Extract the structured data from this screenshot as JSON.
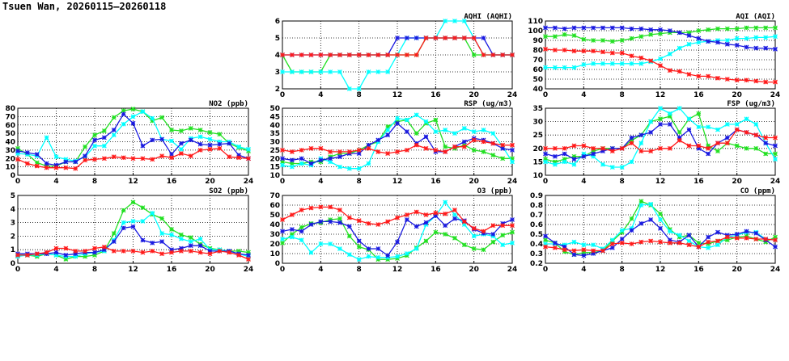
{
  "title": "Tsuen Wan, 20260115—20260118",
  "chart_data": [
    {
      "type": "line",
      "title": "AQHI (AQHI)",
      "xlim": [
        0,
        24
      ],
      "ylim": [
        2,
        6
      ],
      "xticks": [
        0,
        4,
        8,
        12,
        16,
        20,
        24
      ],
      "yticks": [
        2,
        3,
        4,
        5,
        6
      ],
      "grid": true,
      "series": [
        {
          "color": "#22e022",
          "values": [
            4,
            3,
            3,
            3,
            3,
            4,
            4,
            4,
            4,
            4,
            4,
            4,
            4,
            4,
            4,
            5,
            5,
            5,
            5,
            5,
            4,
            4,
            4,
            4,
            4
          ]
        },
        {
          "color": "#00ffff",
          "values": [
            3,
            3,
            3,
            3,
            3,
            3,
            3,
            2,
            2,
            3,
            3,
            3,
            4,
            5,
            5,
            5,
            5,
            6,
            6,
            6,
            5,
            4,
            4,
            4,
            4
          ]
        },
        {
          "color": "#1a1ae0",
          "values": [
            4,
            4,
            4,
            4,
            4,
            4,
            4,
            4,
            4,
            4,
            4,
            4,
            5,
            5,
            5,
            5,
            5,
            5,
            5,
            5,
            5,
            5,
            4,
            4,
            4
          ]
        },
        {
          "color": "#ff1a1a",
          "values": [
            4,
            4,
            4,
            4,
            4,
            4,
            4,
            4,
            4,
            4,
            4,
            4,
            4,
            4,
            4,
            5,
            5,
            5,
            5,
            5,
            5,
            4,
            4,
            4,
            4
          ]
        }
      ]
    },
    {
      "type": "line",
      "title": "AQI (AQI)",
      "xlim": [
        0,
        24
      ],
      "ylim": [
        40,
        110
      ],
      "xticks": [
        0,
        4,
        8,
        12,
        16,
        20,
        24
      ],
      "yticks": [
        40,
        50,
        60,
        70,
        80,
        90,
        100,
        110
      ],
      "grid": true,
      "series": [
        {
          "color": "#22e022",
          "values": [
            94,
            94,
            96,
            95,
            91,
            90,
            90,
            89,
            90,
            92,
            94,
            96,
            97,
            98,
            98,
            98,
            100,
            101,
            102,
            102,
            102,
            103,
            103,
            103,
            103
          ]
        },
        {
          "color": "#00ffff",
          "values": [
            62,
            62,
            62,
            62,
            65,
            66,
            66,
            66,
            66,
            66,
            66,
            68,
            71,
            76,
            82,
            86,
            88,
            89,
            90,
            90,
            92,
            92,
            93,
            93,
            94
          ]
        },
        {
          "color": "#1a1ae0",
          "values": [
            103,
            103,
            102,
            103,
            103,
            103,
            103,
            103,
            103,
            102,
            102,
            101,
            101,
            100,
            98,
            95,
            92,
            89,
            88,
            86,
            85,
            83,
            82,
            82,
            81
          ]
        },
        {
          "color": "#ff1a1a",
          "values": [
            81,
            80,
            80,
            79,
            79,
            79,
            78,
            77,
            77,
            74,
            72,
            69,
            64,
            59,
            58,
            55,
            53,
            53,
            51,
            50,
            49,
            49,
            48,
            47,
            47
          ]
        }
      ]
    },
    {
      "type": "line",
      "title": "NO2 (ppb)",
      "xlim": [
        0,
        24
      ],
      "ylim": [
        0,
        80
      ],
      "xticks": [
        0,
        4,
        8,
        12,
        16,
        20,
        24
      ],
      "yticks": [
        0,
        10,
        20,
        30,
        40,
        50,
        60,
        70,
        80
      ],
      "grid": true,
      "series": [
        {
          "color": "#22e022",
          "values": [
            32,
            25,
            15,
            11,
            11,
            16,
            16,
            34,
            48,
            53,
            69,
            77,
            79,
            76,
            65,
            69,
            54,
            53,
            56,
            54,
            51,
            49,
            38,
            33,
            29
          ]
        },
        {
          "color": "#00ffff",
          "values": [
            26,
            25,
            23,
            45,
            22,
            19,
            17,
            22,
            35,
            35,
            48,
            61,
            70,
            76,
            68,
            43,
            41,
            31,
            44,
            46,
            43,
            40,
            40,
            34,
            31
          ]
        },
        {
          "color": "#1a1ae0",
          "values": [
            29,
            27,
            25,
            14,
            12,
            16,
            16,
            23,
            42,
            45,
            54,
            73,
            62,
            35,
            42,
            43,
            25,
            38,
            42,
            37,
            36,
            37,
            38,
            24,
            20
          ]
        },
        {
          "color": "#ff1a1a",
          "values": [
            19,
            14,
            11,
            9,
            9,
            9,
            8,
            18,
            19,
            20,
            22,
            21,
            20,
            20,
            19,
            23,
            21,
            26,
            23,
            30,
            31,
            32,
            22,
            21,
            20
          ]
        }
      ]
    },
    {
      "type": "line",
      "title": "RSP (ug/m3)",
      "xlim": [
        0,
        24
      ],
      "ylim": [
        10,
        50
      ],
      "xticks": [
        0,
        4,
        8,
        12,
        16,
        20,
        24
      ],
      "yticks": [
        10,
        15,
        20,
        25,
        30,
        35,
        40,
        45,
        50
      ],
      "grid": true,
      "series": [
        {
          "color": "#22e022",
          "values": [
            18,
            17,
            17,
            18,
            18,
            21,
            23,
            23,
            25,
            28,
            30,
            39,
            42,
            43,
            35,
            41,
            43,
            27,
            26,
            28,
            25,
            24,
            22,
            20,
            20
          ]
        },
        {
          "color": "#00ffff",
          "values": [
            16,
            15,
            17,
            16,
            20,
            18,
            15,
            14,
            14,
            17,
            30,
            37,
            44,
            43,
            46,
            42,
            36,
            37,
            35,
            38,
            36,
            37,
            35,
            27,
            18
          ]
        },
        {
          "color": "#1a1ae0",
          "values": [
            20,
            19,
            20,
            17,
            19,
            20,
            21,
            23,
            23,
            28,
            31,
            34,
            41,
            36,
            29,
            33,
            24,
            24,
            27,
            30,
            32,
            31,
            29,
            26,
            25
          ]
        },
        {
          "color": "#ff1a1a",
          "values": [
            25,
            24,
            25,
            26,
            26,
            24,
            24,
            24,
            25,
            26,
            24,
            23,
            24,
            25,
            28,
            26,
            25,
            24,
            27,
            27,
            31,
            30,
            29,
            28,
            28
          ]
        }
      ]
    },
    {
      "type": "line",
      "title": "FSP (ug/m3)",
      "xlim": [
        0,
        24
      ],
      "ylim": [
        10,
        35
      ],
      "xticks": [
        0,
        4,
        8,
        12,
        16,
        20,
        24
      ],
      "yticks": [
        10,
        15,
        20,
        25,
        30,
        35
      ],
      "grid": true,
      "series": [
        {
          "color": "#22e022",
          "values": [
            16,
            15,
            16,
            17,
            17,
            19,
            20,
            20,
            20,
            23,
            25,
            30,
            31,
            32,
            26,
            31,
            33,
            21,
            19,
            22,
            21,
            20,
            20,
            18,
            18
          ]
        },
        {
          "color": "#00ffff",
          "values": [
            15,
            14,
            15,
            14,
            18,
            17,
            14,
            13,
            13,
            15,
            22,
            30,
            35,
            33,
            35,
            31,
            28,
            28,
            27,
            29,
            29,
            31,
            29,
            22,
            16
          ]
        },
        {
          "color": "#1a1ae0",
          "values": [
            18,
            17,
            18,
            16,
            17,
            18,
            19,
            20,
            20,
            24,
            25,
            26,
            29,
            29,
            24,
            27,
            20,
            18,
            22,
            24,
            27,
            26,
            25,
            22,
            21
          ]
        },
        {
          "color": "#ff1a1a",
          "values": [
            20,
            20,
            20,
            21,
            21,
            20,
            20,
            19,
            20,
            22,
            19,
            19,
            20,
            20,
            23,
            21,
            21,
            20,
            22,
            22,
            27,
            26,
            25,
            24,
            24
          ]
        }
      ]
    },
    {
      "type": "line",
      "title": "SO2 (ppb)",
      "xlim": [
        0,
        24
      ],
      "ylim": [
        0,
        5
      ],
      "xticks": [
        0,
        4,
        8,
        12,
        16,
        20,
        24
      ],
      "yticks": [
        0,
        1,
        2,
        3,
        4,
        5
      ],
      "grid": true,
      "series": [
        {
          "color": "#22e022",
          "values": [
            0.6,
            0.6,
            0.5,
            0.7,
            0.6,
            0.3,
            0.5,
            0.5,
            0.6,
            0.9,
            2.2,
            3.9,
            4.5,
            4.1,
            3.6,
            3.3,
            2.5,
            2.1,
            1.9,
            1.4,
            1.1,
            1.0,
            0.9,
            0.9,
            0.8
          ]
        },
        {
          "color": "#00ffff",
          "values": [
            0.5,
            0.6,
            0.6,
            0.7,
            0.6,
            0.5,
            0.5,
            0.7,
            0.8,
            0.9,
            1.7,
            3.0,
            3.1,
            3.1,
            3.7,
            2.2,
            2.1,
            1.8,
            1.6,
            1.8,
            1.0,
            1.0,
            0.9,
            0.7,
            0.5
          ]
        },
        {
          "color": "#1a1ae0",
          "values": [
            0.7,
            0.7,
            0.7,
            0.7,
            0.8,
            0.6,
            0.7,
            0.8,
            0.8,
            1.0,
            1.6,
            2.6,
            2.7,
            1.7,
            1.5,
            1.6,
            1.0,
            1.1,
            1.3,
            1.3,
            0.9,
            0.9,
            0.9,
            0.7,
            0.6
          ]
        },
        {
          "color": "#ff1a1a",
          "values": [
            0.6,
            0.6,
            0.7,
            0.8,
            1.1,
            1.1,
            0.9,
            0.9,
            1.1,
            1.2,
            0.9,
            0.9,
            0.9,
            0.8,
            0.9,
            0.7,
            0.8,
            0.9,
            0.9,
            0.8,
            0.7,
            0.9,
            0.8,
            0.6,
            0.3
          ]
        }
      ]
    },
    {
      "type": "line",
      "title": "O3 (ppb)",
      "xlim": [
        0,
        24
      ],
      "ylim": [
        0,
        70
      ],
      "xticks": [
        0,
        4,
        8,
        12,
        16,
        20,
        24
      ],
      "yticks": [
        0,
        10,
        20,
        30,
        40,
        50,
        60,
        70
      ],
      "grid": true,
      "series": [
        {
          "color": "#22e022",
          "values": [
            21,
            30,
            37,
            41,
            42,
            45,
            46,
            28,
            17,
            14,
            4,
            4,
            5,
            8,
            16,
            23,
            32,
            30,
            26,
            19,
            15,
            14,
            22,
            29,
            32
          ]
        },
        {
          "color": "#00ffff",
          "values": [
            25,
            27,
            24,
            11,
            20,
            20,
            15,
            9,
            4,
            7,
            6,
            6,
            7,
            10,
            15,
            40,
            49,
            63,
            50,
            40,
            28,
            30,
            28,
            19,
            21
          ]
        },
        {
          "color": "#1a1ae0",
          "values": [
            33,
            35,
            33,
            40,
            43,
            43,
            42,
            38,
            23,
            15,
            15,
            8,
            22,
            45,
            38,
            42,
            49,
            39,
            46,
            44,
            35,
            31,
            30,
            41,
            45
          ]
        },
        {
          "color": "#ff1a1a",
          "values": [
            45,
            50,
            55,
            57,
            58,
            58,
            55,
            47,
            44,
            41,
            40,
            43,
            47,
            50,
            53,
            50,
            52,
            51,
            55,
            43,
            36,
            33,
            39,
            39,
            39
          ]
        }
      ]
    },
    {
      "type": "line",
      "title": "CO (ppm)",
      "xlim": [
        0,
        24
      ],
      "ylim": [
        0.2,
        0.9
      ],
      "xticks": [
        0,
        4,
        8,
        12,
        16,
        20,
        24
      ],
      "yticks": [
        0.2,
        0.3,
        0.4,
        0.5,
        0.6,
        0.7,
        0.8,
        0.9
      ],
      "grid": true,
      "series": [
        {
          "color": "#22e022",
          "values": [
            0.44,
            0.41,
            0.32,
            0.29,
            0.31,
            0.31,
            0.33,
            0.43,
            0.52,
            0.66,
            0.84,
            0.8,
            0.71,
            0.55,
            0.47,
            0.49,
            0.41,
            0.4,
            0.43,
            0.44,
            0.47,
            0.48,
            0.45,
            0.42,
            0.47
          ]
        },
        {
          "color": "#00ffff",
          "values": [
            0.4,
            0.4,
            0.39,
            0.42,
            0.39,
            0.39,
            0.35,
            0.44,
            0.54,
            0.56,
            0.8,
            0.81,
            0.65,
            0.53,
            0.49,
            0.43,
            0.37,
            0.36,
            0.39,
            0.47,
            0.49,
            0.52,
            0.52,
            0.45,
            0.44
          ]
        },
        {
          "color": "#1a1ae0",
          "values": [
            0.48,
            0.41,
            0.37,
            0.29,
            0.28,
            0.3,
            0.33,
            0.36,
            0.45,
            0.54,
            0.61,
            0.65,
            0.56,
            0.44,
            0.42,
            0.49,
            0.37,
            0.47,
            0.52,
            0.49,
            0.5,
            0.53,
            0.51,
            0.44,
            0.37
          ]
        },
        {
          "color": "#ff1a1a",
          "values": [
            0.37,
            0.36,
            0.34,
            0.33,
            0.34,
            0.33,
            0.33,
            0.4,
            0.41,
            0.4,
            0.42,
            0.43,
            0.42,
            0.41,
            0.41,
            0.39,
            0.37,
            0.42,
            0.43,
            0.47,
            0.46,
            0.46,
            0.45,
            0.45,
            0.44
          ]
        }
      ]
    }
  ]
}
